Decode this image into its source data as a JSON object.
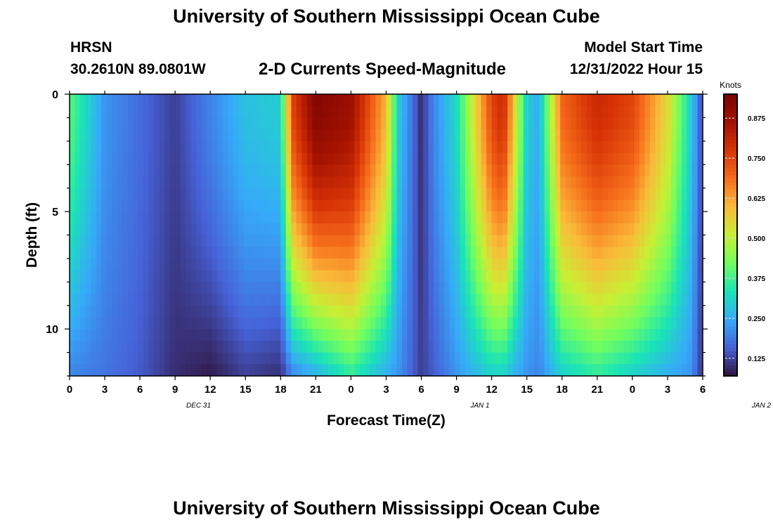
{
  "header": {
    "title": "University of Southern Mississippi Ocean Cube",
    "station": "HRSN",
    "location": "30.2610N  89.0801W",
    "subtitle": "2-D Currents Speed-Magnitude",
    "model_start_label": "Model Start Time",
    "model_start_value": "12/31/2022 Hour 15",
    "footer_title": "University of Southern Mississippi Ocean Cube"
  },
  "chart_data": {
    "type": "heatmap",
    "title": "2-D Currents Speed-Magnitude",
    "xlabel": "Forecast Time(Z)",
    "ylabel": "Depth (ft)",
    "x_tick_labels": [
      "0",
      "3",
      "6",
      "9",
      "12",
      "15",
      "18",
      "21",
      "0",
      "3",
      "6",
      "9",
      "12",
      "15",
      "18",
      "21",
      "0",
      "3",
      "6"
    ],
    "date_labels": [
      {
        "text": "DEC 31",
        "hour": 11
      },
      {
        "text": "JAN 1",
        "hour": 35
      },
      {
        "text": "JAN 2",
        "hour": 59
      }
    ],
    "xlim_hours": [
      0,
      54
    ],
    "y_ticks": [
      0,
      5,
      10
    ],
    "ylim_ft": [
      0,
      12
    ],
    "colorbar": {
      "label": "Knots",
      "ticks": [
        "0.125",
        "0.250",
        "0.375",
        "0.500",
        "0.625",
        "0.750",
        "0.875"
      ],
      "range": [
        0.07,
        0.95
      ]
    },
    "time_hours": [
      0,
      3,
      6,
      9,
      12,
      15,
      18,
      19,
      21,
      24,
      27,
      28,
      30,
      31,
      33,
      36,
      37,
      38,
      39,
      40,
      42,
      45,
      48,
      51,
      53,
      54
    ],
    "value_at_surface_knots": [
      0.4,
      0.22,
      0.17,
      0.12,
      0.2,
      0.28,
      0.3,
      0.75,
      0.93,
      0.88,
      0.6,
      0.3,
      0.1,
      0.2,
      0.32,
      0.75,
      0.8,
      0.55,
      0.3,
      0.25,
      0.7,
      0.8,
      0.75,
      0.55,
      0.3,
      0.12
    ],
    "value_at_bottom_knots": [
      0.2,
      0.18,
      0.15,
      0.1,
      0.08,
      0.12,
      0.1,
      0.2,
      0.25,
      0.35,
      0.25,
      0.22,
      0.12,
      0.15,
      0.22,
      0.3,
      0.3,
      0.25,
      0.22,
      0.2,
      0.3,
      0.35,
      0.3,
      0.25,
      0.22,
      0.1
    ]
  }
}
